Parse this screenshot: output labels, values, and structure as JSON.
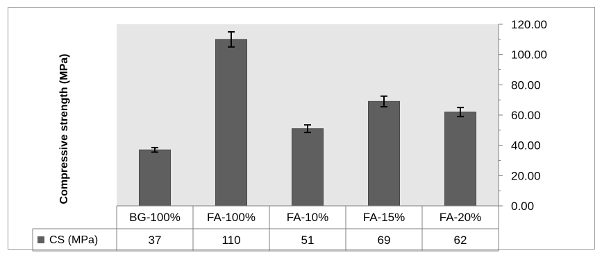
{
  "chart_data": {
    "type": "bar",
    "title": "",
    "ylabel": "Compressive strength (MPa)",
    "xlabel": "",
    "categories": [
      "BG-100%",
      "FA-100%",
      "FA-10%",
      "FA-15%",
      "FA-20%"
    ],
    "series": [
      {
        "name": "CS (MPa)",
        "values": [
          37,
          110,
          51,
          69,
          62
        ],
        "error": [
          1.5,
          5,
          2.5,
          3.5,
          3
        ],
        "color": "#5f5f5f"
      }
    ],
    "ylim": [
      0,
      120
    ],
    "yticks": [
      "0.00",
      "20.00",
      "40.00",
      "60.00",
      "80.00",
      "100.00",
      "120.00"
    ],
    "y_axis_position": "right",
    "grid": false,
    "plot_background": "#e6e6e6",
    "legend": "data-table",
    "data_table": {
      "legend_label": "CS (MPa)",
      "values": [
        "37",
        "110",
        "51",
        "69",
        "62"
      ]
    }
  }
}
